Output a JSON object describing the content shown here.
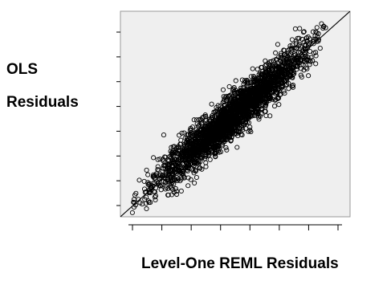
{
  "chart_data": {
    "type": "scatter",
    "title": "",
    "xlabel": "Level-One REML Residuals",
    "ylabel_lines": [
      "OLS",
      "Residuals"
    ],
    "xlim": [
      0,
      10
    ],
    "ylim": [
      0,
      10
    ],
    "x_tick_count": 8,
    "y_tick_count": 8,
    "tick_labels_shown": false,
    "grid": false,
    "legend": "none",
    "colors": {
      "plot_background": "#efefef",
      "frame": "#9a9a9a",
      "marker": "#000000",
      "fit_line": "#000000"
    },
    "marker": "open-circle",
    "fit_line": {
      "intercept": 0.0,
      "slope": 1.0
    },
    "points_note": "approx. several thousand points clustered tightly along the fit line",
    "series": [
      {
        "points": [
          [
            0.78,
            0.85
          ],
          [
            0.95,
            0.62
          ],
          [
            1.05,
            1.35
          ],
          [
            1.12,
            0.95
          ],
          [
            1.25,
            1.55
          ],
          [
            1.3,
            0.7
          ],
          [
            1.42,
            1.95
          ],
          [
            1.5,
            1.2
          ],
          [
            1.62,
            2.3
          ],
          [
            1.75,
            1.5
          ],
          [
            1.85,
            2.8
          ],
          [
            1.95,
            1.9
          ],
          [
            2.05,
            2.55
          ],
          [
            2.2,
            1.8
          ],
          [
            2.3,
            3.2
          ],
          [
            2.45,
            2.3
          ],
          [
            2.55,
            3.05
          ],
          [
            2.7,
            2.6
          ],
          [
            2.85,
            3.6
          ],
          [
            2.95,
            2.55
          ],
          [
            3.05,
            3.35
          ],
          [
            3.2,
            3.0
          ],
          [
            3.3,
            4.1
          ],
          [
            3.45,
            3.1
          ],
          [
            3.55,
            3.9
          ],
          [
            3.7,
            3.45
          ],
          [
            3.85,
            4.55
          ],
          [
            3.95,
            3.7
          ],
          [
            4.05,
            4.4
          ],
          [
            4.2,
            3.9
          ],
          [
            4.3,
            5.1
          ],
          [
            4.45,
            4.25
          ],
          [
            4.55,
            5.0
          ],
          [
            4.7,
            4.5
          ],
          [
            4.85,
            5.55
          ],
          [
            4.95,
            4.7
          ],
          [
            5.05,
            5.3
          ],
          [
            5.2,
            5.0
          ],
          [
            5.3,
            6.05
          ],
          [
            5.45,
            5.2
          ],
          [
            5.55,
            5.95
          ],
          [
            5.7,
            5.45
          ],
          [
            5.85,
            6.55
          ],
          [
            5.95,
            5.75
          ],
          [
            6.05,
            6.35
          ],
          [
            6.2,
            5.9
          ],
          [
            6.3,
            7.05
          ],
          [
            6.45,
            6.15
          ],
          [
            6.55,
            6.9
          ],
          [
            6.7,
            6.4
          ],
          [
            6.85,
            7.5
          ],
          [
            6.95,
            6.7
          ],
          [
            7.05,
            7.35
          ],
          [
            7.2,
            6.85
          ],
          [
            7.3,
            7.95
          ],
          [
            7.45,
            7.1
          ],
          [
            7.55,
            7.85
          ],
          [
            7.7,
            7.3
          ],
          [
            7.85,
            8.3
          ],
          [
            8.0,
            7.6
          ],
          [
            8.1,
            8.7
          ],
          [
            8.25,
            8.05
          ],
          [
            8.4,
            8.55
          ],
          [
            8.55,
            8.95
          ],
          [
            8.7,
            8.2
          ],
          [
            8.85,
            9.25
          ]
        ]
      }
    ]
  }
}
